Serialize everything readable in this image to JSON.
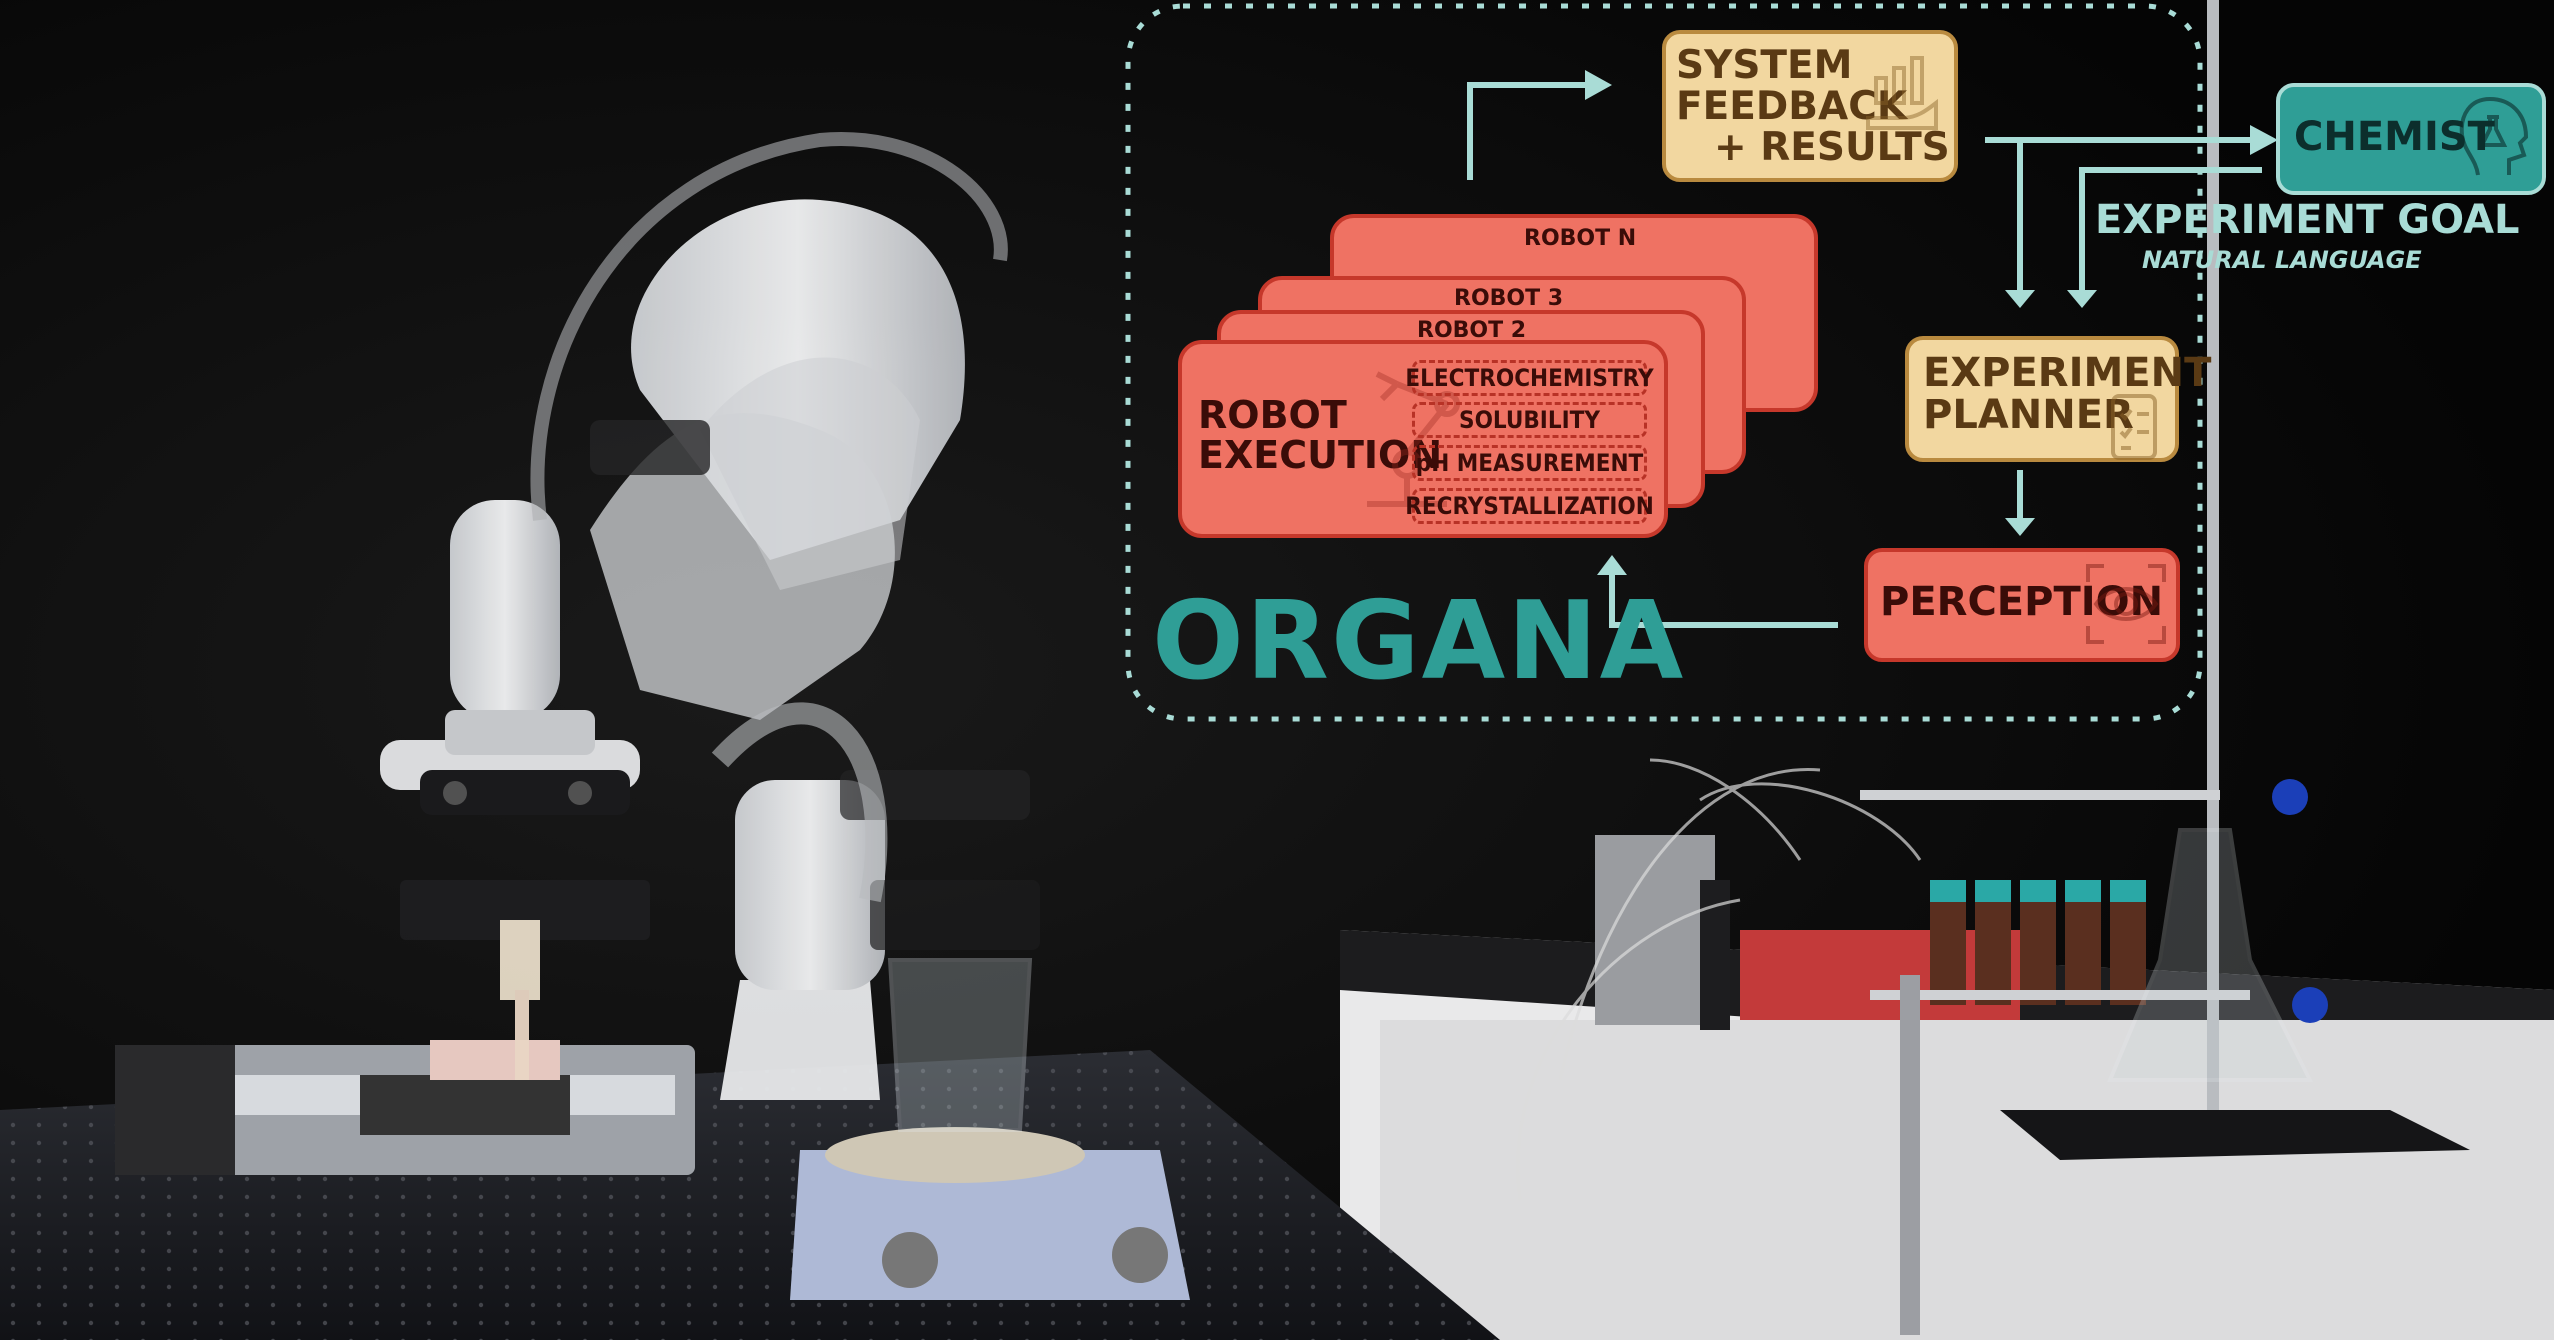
{
  "title": "ORGANA",
  "chemist": {
    "label": "CHEMIST"
  },
  "experiment_goal": {
    "label": "EXPERIMENT GOAL",
    "sublabel": "NATURAL LANGUAGE"
  },
  "feedback": {
    "line1": "SYSTEM",
    "line2": "FEEDBACK",
    "line3": "+ RESULTS"
  },
  "planner": {
    "line1": "EXPERIMENT",
    "line2": "PLANNER"
  },
  "perception": {
    "label": "PERCEPTION"
  },
  "robots": {
    "robot_n": "ROBOT N",
    "robot_3": "ROBOT 3",
    "robot_2": "ROBOT 2",
    "execution_line1": "ROBOT",
    "execution_line2": "EXECUTION",
    "tasks": [
      "ELECTROCHEMISTRY",
      "SOLUBILITY",
      "pH MEASUREMENT",
      "RECRYSTALLIZATION"
    ]
  },
  "colors": {
    "teal": "#a9dcd6",
    "teal_dark": "#2f9e96",
    "red": "#ef7263",
    "red_border": "#c6382b",
    "tan": "#f2d7a0",
    "tan_border": "#b98a3f"
  },
  "icons": [
    "flask-head-icon",
    "chart-hand-icon",
    "checklist-icon",
    "eye-scan-icon",
    "robot-arm-icon"
  ]
}
